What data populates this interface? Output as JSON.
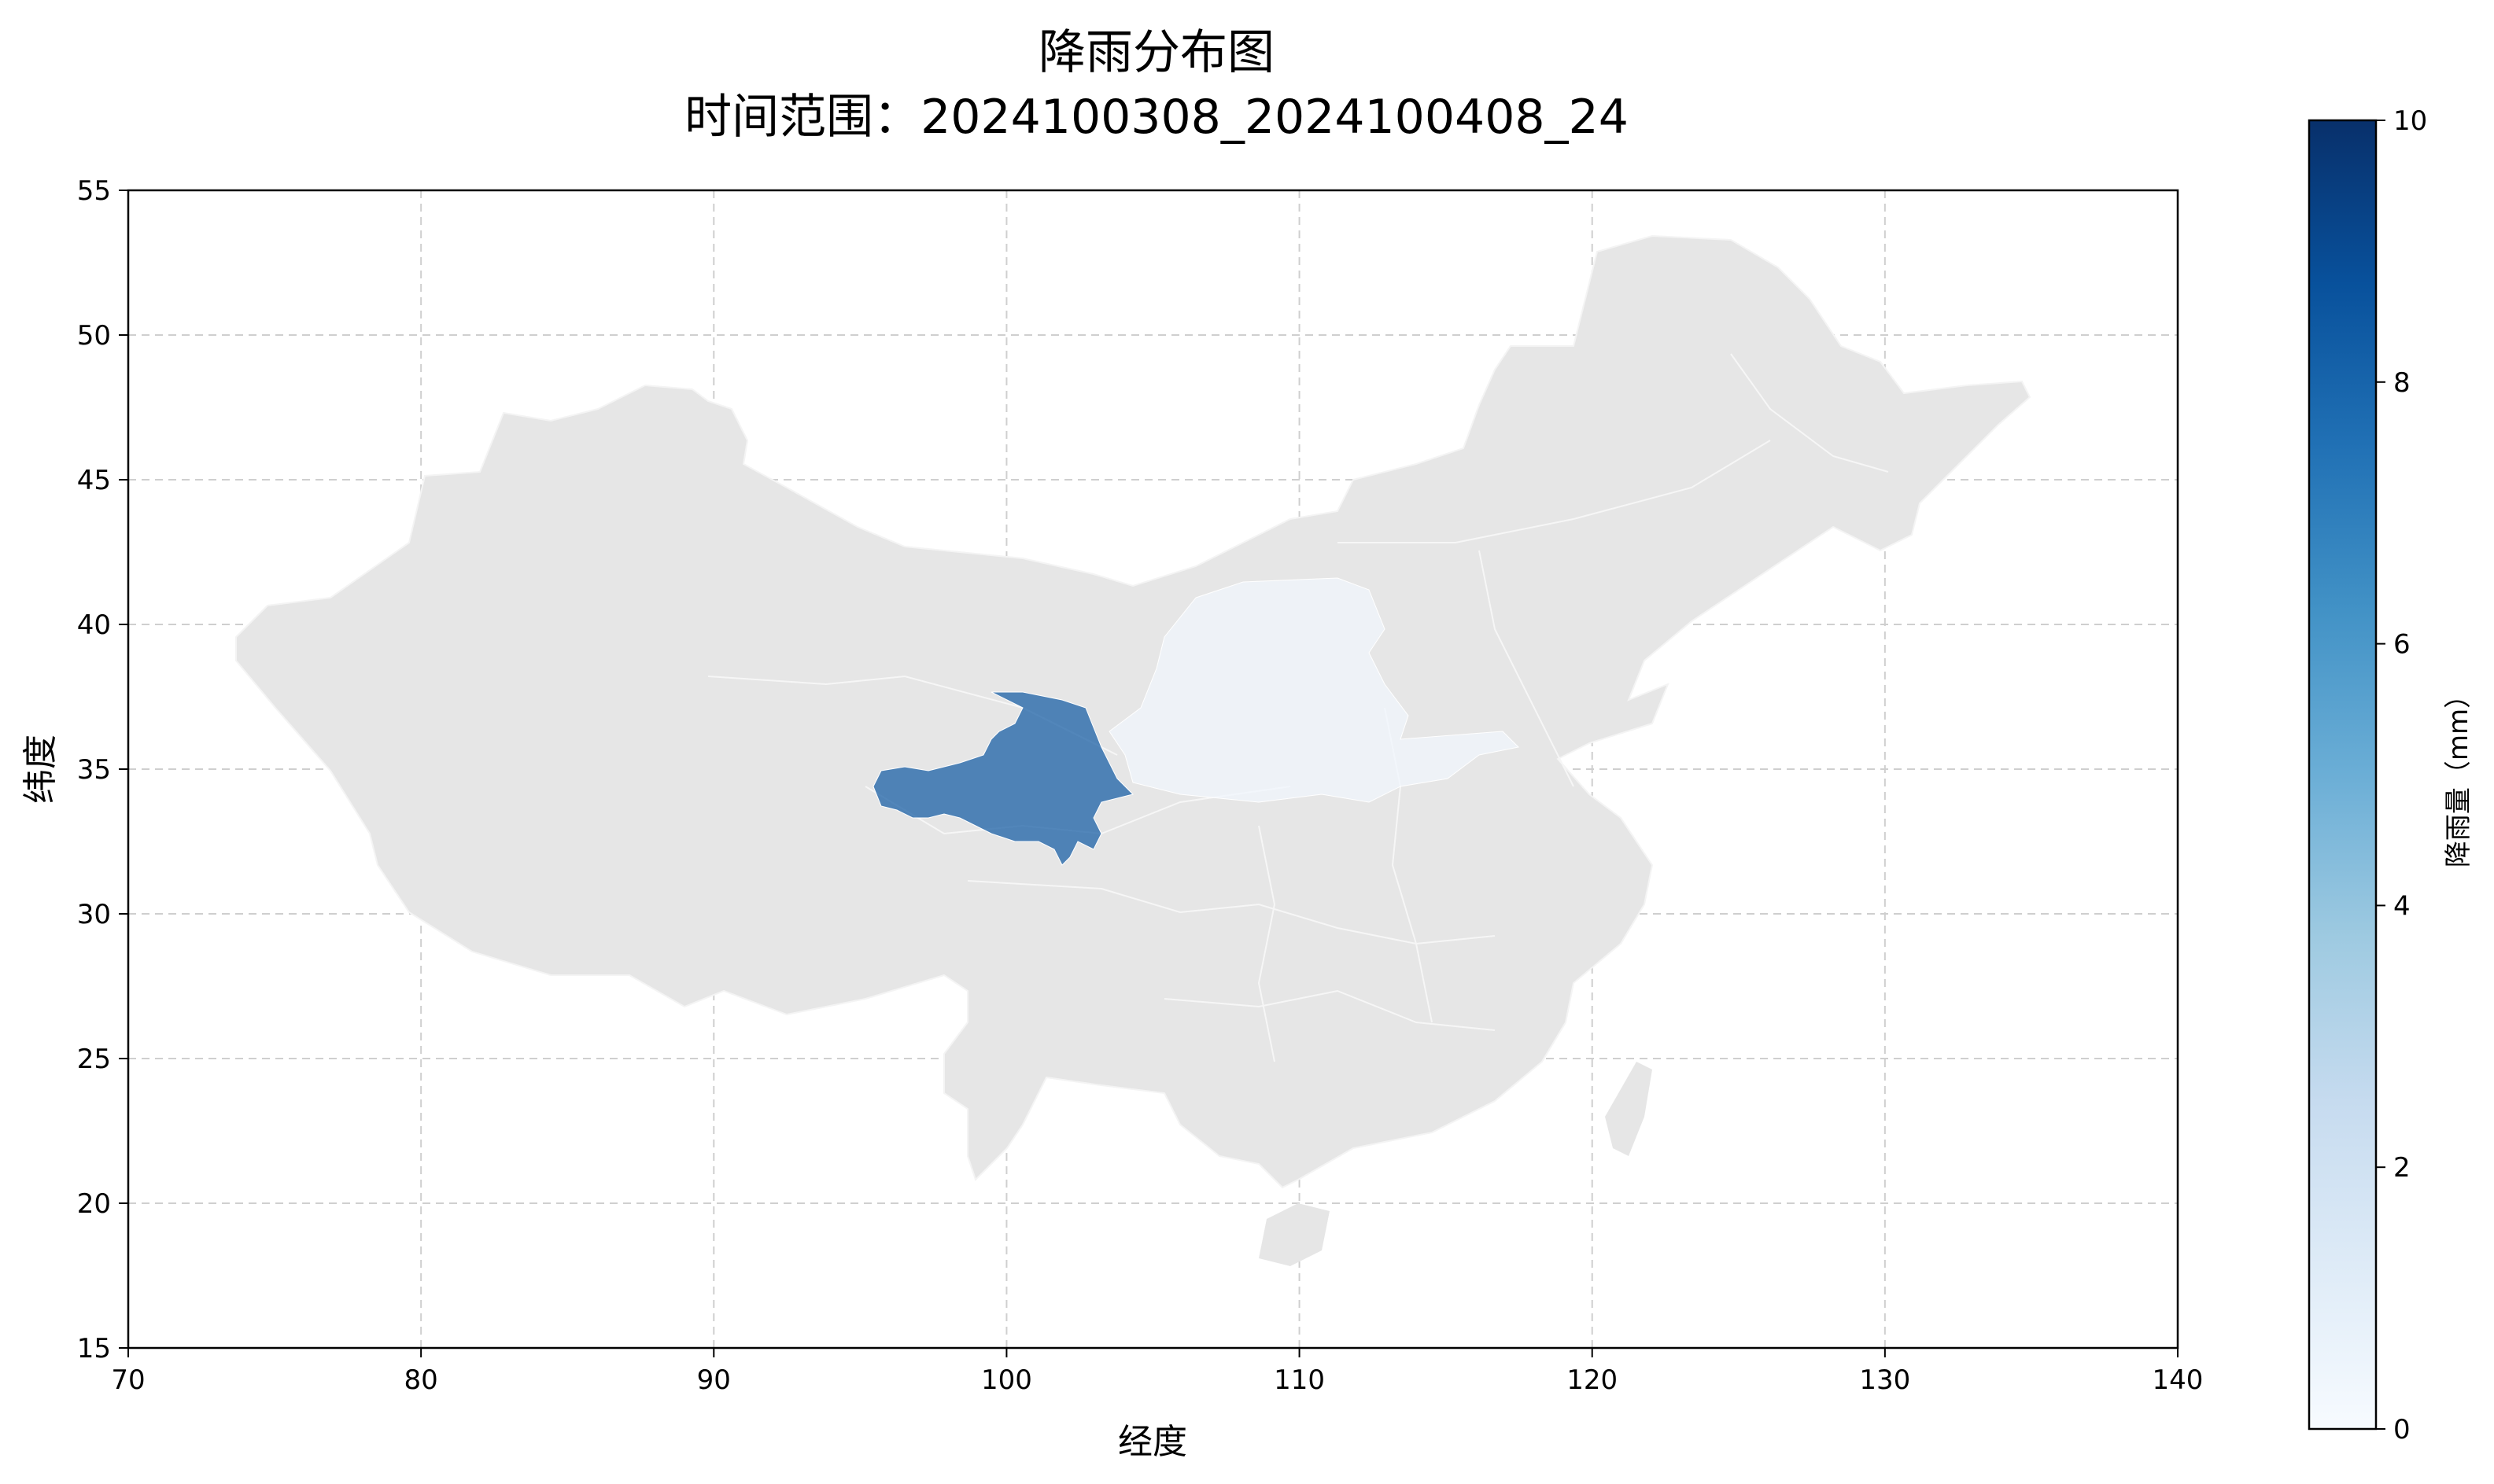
{
  "title": {
    "main": "降雨分布图",
    "range_prefix": "时间范围：",
    "range_value": "2024100308_2024100408_24"
  },
  "chart_data": {
    "type": "choropleth-map",
    "xlabel": "经度",
    "ylabel": "纬度",
    "xlim": [
      70,
      140
    ],
    "ylim": [
      15,
      55
    ],
    "xticks": [
      "70",
      "80",
      "90",
      "100",
      "110",
      "120",
      "130",
      "140"
    ],
    "yticks": [
      "15",
      "20",
      "25",
      "30",
      "35",
      "40",
      "45",
      "50",
      "55"
    ],
    "grid": true,
    "colorbar": {
      "label": "降雨量（mm）",
      "min": 0,
      "max": 10,
      "ticks": [
        "0",
        "2",
        "4",
        "6",
        "8",
        "10"
      ],
      "colormap": "Blues",
      "stops": [
        "#f7fbff",
        "#deebf7",
        "#c6dbef",
        "#9ecae1",
        "#6baed6",
        "#4292c6",
        "#2171b5",
        "#08519c",
        "#08306b"
      ]
    },
    "regions": [
      {
        "region": "qinghai-east",
        "rainfall": 8.5
      },
      {
        "region": "shaanxi-shanxi-north",
        "rainfall": 0.3
      },
      {
        "region": "other-provinces",
        "rainfall": null
      }
    ],
    "no_data_color": "#e6e6e6",
    "region_fill_opacity": 0.7
  }
}
